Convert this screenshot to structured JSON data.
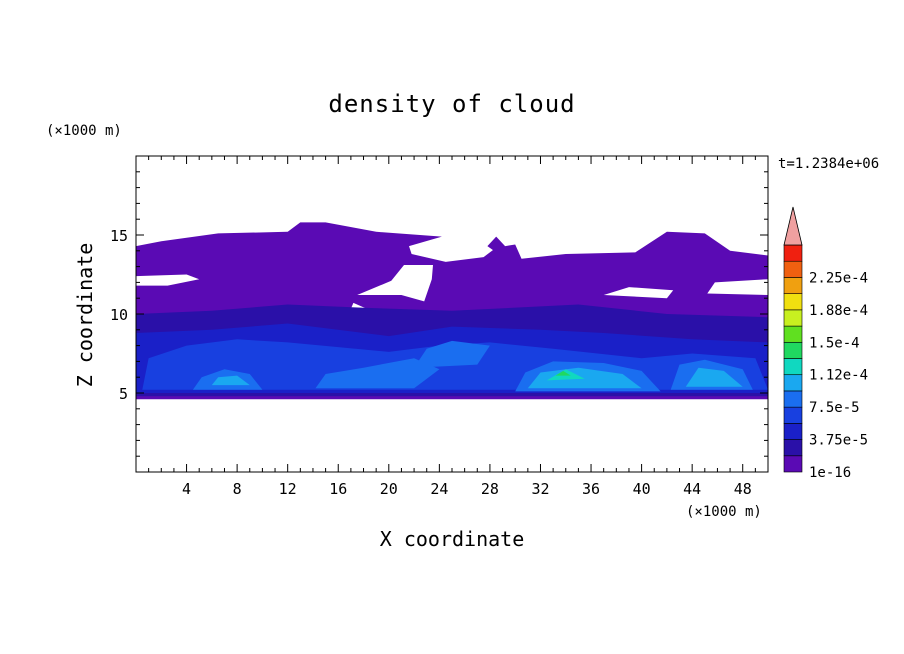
{
  "chart_data": {
    "type": "heatmap",
    "title": "density of cloud",
    "time_label": "t=1.2384e+06",
    "xlabel": "X coordinate",
    "ylabel": "Z coordinate",
    "x_unit": "(×1000 m)",
    "y_unit": "(×1000 m)",
    "xlim": [
      0,
      50
    ],
    "ylim": [
      0,
      20
    ],
    "x_ticks": [
      4,
      8,
      12,
      16,
      20,
      24,
      28,
      32,
      36,
      40,
      44,
      48
    ],
    "y_ticks": [
      5,
      10,
      15
    ],
    "colorbar": {
      "labels": [
        "2.25e-4",
        "1.88e-4",
        "1.5e-4",
        "1.12e-4",
        "7.5e-5",
        "3.75e-5",
        "1e-16"
      ],
      "levels": [
        1e-16,
        1.875e-05,
        3.75e-05,
        5.625e-05,
        7.5e-05,
        9.375e-05,
        0.0001125,
        0.00013125,
        0.00015,
        0.00016875,
        0.0001875,
        0.00020625,
        0.000225,
        0.00024375
      ],
      "colors": [
        "#5a0ab4",
        "#2a10a8",
        "#1a20c8",
        "#1840e0",
        "#1a6ef0",
        "#1aa8f0",
        "#10d8c0",
        "#20d860",
        "#60e020",
        "#c8f020",
        "#f0e010",
        "#f0a010",
        "#f06010",
        "#f02010",
        "#f0a0a0"
      ]
    },
    "field_description_values": {
      "layers": [
        {
          "level": 1,
          "x": [
            0,
            50
          ],
          "z": [
            4.5,
            15.8
          ]
        },
        {
          "level": 3,
          "x": [
            0,
            50
          ],
          "z": [
            4.6,
            9.5
          ]
        },
        {
          "level": 5,
          "x": [
            30,
            50
          ],
          "z": [
            4.8,
            7
          ]
        },
        {
          "level": 7,
          "x": [
            32,
            36
          ],
          "z": [
            5.5,
            6.8
          ]
        }
      ]
    }
  }
}
